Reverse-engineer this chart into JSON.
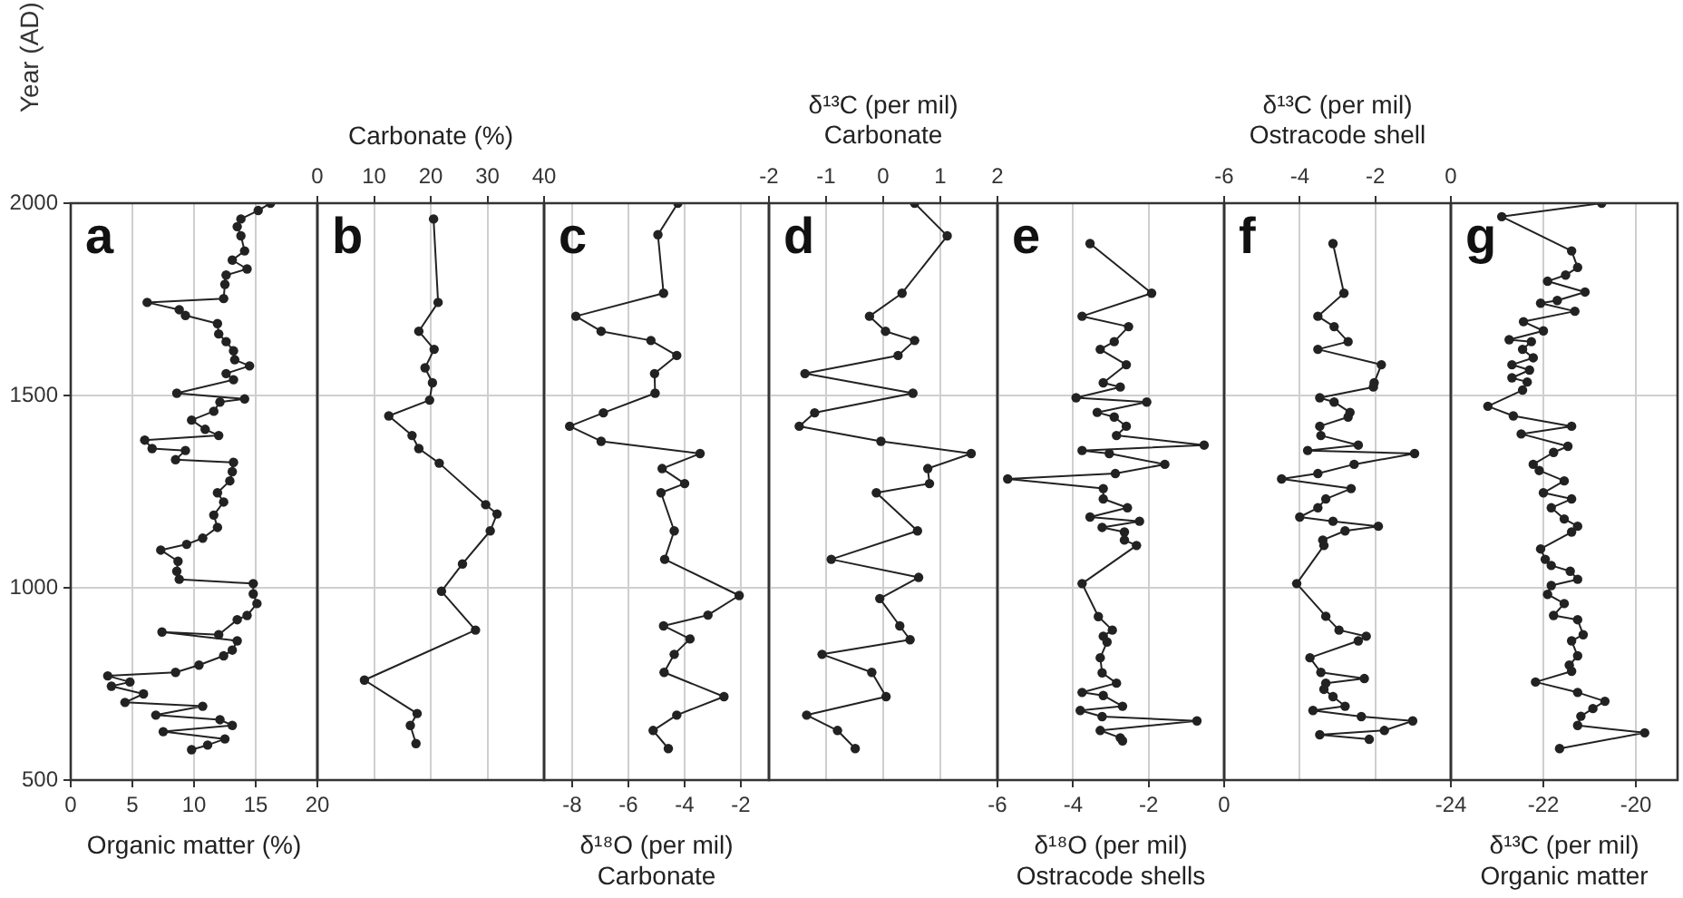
{
  "chart_data": [
    {
      "type": "line",
      "marker": "circle",
      "color": "#222222",
      "grid": true,
      "annotations": [
        "a"
      ],
      "xlabel": "Organic matter (%)",
      "ylabel": "Year (AD)",
      "xlim": [
        0,
        20
      ],
      "xticks": [
        0,
        5,
        10,
        15,
        20
      ],
      "ylim": [
        500,
        2000
      ],
      "yticks": [
        500,
        1000,
        1500,
        2000
      ],
      "x": [
        16.2,
        15.2,
        13.8,
        13.5,
        13.8,
        14.1,
        13.1,
        14.3,
        12.6,
        12.5,
        12.4,
        6.2,
        8.8,
        9.3,
        11.9,
        12.0,
        12.6,
        13.2,
        13.3,
        14.5,
        12.6,
        13.2,
        8.6,
        14.1,
        12.1,
        11.6,
        9.8,
        10.9,
        12.0,
        6.0,
        6.6,
        9.3,
        8.5,
        13.2,
        13.1,
        12.9,
        11.9,
        12.4,
        11.6,
        11.9,
        10.7,
        9.4,
        7.3,
        8.7,
        8.6,
        8.8,
        14.8,
        14.8,
        15.1,
        14.3,
        13.5,
        12.0,
        7.4,
        13.5,
        13.1,
        12.4,
        10.4,
        8.5,
        3.0,
        4.8,
        3.3,
        5.9,
        4.4,
        10.7,
        6.9,
        12.1,
        13.1,
        7.5,
        12.5,
        11.1,
        9.8
      ],
      "values": [
        2000,
        1981,
        1959,
        1939,
        1915,
        1876,
        1852,
        1829,
        1813,
        1789,
        1752,
        1742,
        1723,
        1708,
        1687,
        1660,
        1640,
        1616,
        1593,
        1577,
        1557,
        1541,
        1506,
        1491,
        1483,
        1459,
        1436,
        1412,
        1396,
        1384,
        1362,
        1357,
        1333,
        1326,
        1302,
        1278,
        1247,
        1223,
        1189,
        1157,
        1129,
        1113,
        1098,
        1069,
        1043,
        1022,
        1011,
        984,
        959,
        928,
        917,
        878,
        885,
        862,
        838,
        823,
        799,
        780,
        771,
        755,
        744,
        724,
        702,
        692,
        669,
        657,
        642,
        626,
        607,
        591,
        579
      ]
    },
    {
      "type": "line",
      "marker": "circle",
      "color": "#222222",
      "grid": true,
      "tick_labels": "x",
      "annotations": [
        "b"
      ],
      "xlabel": "Carbonate (%)",
      "xlim": [
        0,
        40
      ],
      "xticks": [
        0,
        10,
        20,
        30,
        40
      ],
      "ylim": [
        500,
        2000
      ],
      "yticks": [
        500,
        1000,
        1500,
        2000
      ],
      "x": [
        20.5,
        21.3,
        17.9,
        20.6,
        19.0,
        20.3,
        19.8,
        12.6,
        16.7,
        17.9,
        21.5,
        29.7,
        31.7,
        30.5,
        25.6,
        21.9,
        27.9,
        8.3,
        17.6,
        16.4,
        17.4
      ],
      "values": [
        1959,
        1742,
        1667,
        1620,
        1572,
        1533,
        1488,
        1447,
        1396,
        1362,
        1324,
        1216,
        1192,
        1148,
        1062,
        991,
        890,
        760,
        673,
        642,
        595
      ]
    },
    {
      "type": "line",
      "marker": "circle",
      "color": "#222222",
      "grid": true,
      "tick_labels": "x",
      "annotations": [
        "c"
      ],
      "xlabel": "δ¹⁸O (per mil)\nCarbonate",
      "xlim": [
        -9,
        -1
      ],
      "xticks": [
        -8,
        -6,
        -4,
        -2
      ],
      "ylim": [
        500,
        2000
      ],
      "yticks": [
        500,
        1000,
        1500,
        2000
      ],
      "x": [
        -4.24,
        -4.95,
        -4.75,
        -7.87,
        -6.97,
        -5.2,
        -4.28,
        -5.07,
        -5.05,
        -6.89,
        -8.09,
        -6.97,
        -3.45,
        -4.8,
        -4.0,
        -4.84,
        -4.37,
        -4.71,
        -2.06,
        -3.17,
        -4.75,
        -3.81,
        -4.37,
        -4.73,
        -2.6,
        -4.28,
        -5.12,
        -4.58
      ],
      "values": [
        2000,
        1918,
        1766,
        1706,
        1667,
        1643,
        1604,
        1557,
        1506,
        1455,
        1420,
        1381,
        1349,
        1310,
        1271,
        1247,
        1148,
        1074,
        980,
        929,
        901,
        867,
        827,
        780,
        717,
        669,
        629,
        582
      ]
    },
    {
      "type": "line",
      "marker": "circle",
      "color": "#222222",
      "grid": true,
      "tick_labels": "x",
      "annotations": [
        "d"
      ],
      "xlabel": "δ¹³C (per mil)\nCarbonate",
      "xlim": [
        -2,
        2
      ],
      "xticks": [
        -2,
        -1,
        0,
        1,
        2
      ],
      "ylim": [
        500,
        2000
      ],
      "yticks": [
        500,
        1000,
        1500,
        2000
      ],
      "x": [
        0.55,
        1.12,
        0.33,
        -0.24,
        0.04,
        0.55,
        0.26,
        -1.37,
        0.52,
        -1.2,
        -1.47,
        -0.04,
        1.54,
        0.78,
        0.81,
        -0.12,
        0.6,
        -0.91,
        0.62,
        -0.06,
        0.29,
        0.47,
        -1.07,
        -0.2,
        0.05,
        -1.34,
        -0.8,
        -0.49
      ],
      "values": [
        2000,
        1915,
        1766,
        1706,
        1667,
        1643,
        1604,
        1557,
        1506,
        1455,
        1420,
        1381,
        1349,
        1310,
        1271,
        1247,
        1148,
        1074,
        1027,
        972,
        901,
        865,
        827,
        780,
        717,
        669,
        629,
        582
      ]
    },
    {
      "type": "line",
      "marker": "circle",
      "color": "#222222",
      "grid": true,
      "tick_labels": "x",
      "annotations": [
        "e"
      ],
      "xlabel": "δ¹⁸O (per mil)\nOstracode shells",
      "xlim": [
        -6,
        0
      ],
      "xticks": [
        -6,
        -4,
        -2,
        0
      ],
      "ylim": [
        500,
        2000
      ],
      "yticks": [
        500,
        1000,
        1500,
        2000
      ],
      "x": [
        -3.55,
        -1.92,
        -3.76,
        -2.53,
        -2.91,
        -3.28,
        -2.59,
        -3.2,
        -2.75,
        -3.92,
        -2.05,
        -3.36,
        -2.91,
        -2.59,
        -2.85,
        -0.53,
        -3.76,
        -3.04,
        -1.57,
        -2.88,
        -5.73,
        -3.2,
        -3.2,
        -2.56,
        -3.55,
        -2.24,
        -3.23,
        -2.64,
        -2.64,
        -2.32,
        -3.76,
        -3.33,
        -2.96,
        -3.2,
        -3.1,
        -3.28,
        -3.23,
        -2.85,
        -3.76,
        -3.2,
        -2.69,
        -3.81,
        -3.23,
        -0.72,
        -3.28,
        -2.75,
        -2.69
      ],
      "values": [
        1895,
        1766,
        1706,
        1679,
        1640,
        1620,
        1580,
        1533,
        1522,
        1494,
        1483,
        1456,
        1444,
        1420,
        1396,
        1371,
        1357,
        1349,
        1321,
        1297,
        1283,
        1258,
        1231,
        1208,
        1184,
        1173,
        1157,
        1145,
        1124,
        1110,
        1011,
        925,
        890,
        874,
        859,
        818,
        779,
        752,
        728,
        720,
        692,
        681,
        665,
        654,
        629,
        610,
        602
      ]
    },
    {
      "type": "line",
      "marker": "circle",
      "color": "#222222",
      "grid": true,
      "tick_labels": "x",
      "annotations": [
        "f"
      ],
      "xlabel": "δ¹³C (per mil)\nOstracode shell",
      "xlim": [
        -6,
        0
      ],
      "xticks": [
        -6,
        -4,
        -2,
        0
      ],
      "ylim": [
        500,
        2000
      ],
      "yticks": [
        500,
        1000,
        1500,
        2000
      ],
      "x": [
        -3.12,
        -2.83,
        -3.52,
        -3.09,
        -2.72,
        -3.52,
        -1.84,
        -2.03,
        -2.05,
        -3.47,
        -3.09,
        -2.67,
        -2.72,
        -3.47,
        -3.44,
        -2.45,
        -3.79,
        -0.96,
        -2.56,
        -3.52,
        -4.48,
        -2.64,
        -3.31,
        -3.52,
        -4.0,
        -3.12,
        -1.92,
        -2.8,
        -3.39,
        -3.36,
        -4.08,
        -3.31,
        -2.96,
        -2.24,
        -2.45,
        -3.73,
        -3.44,
        -2.29,
        -3.31,
        -3.36,
        -3.12,
        -2.8,
        -3.65,
        -2.37,
        -1.01,
        -1.76,
        -3.47,
        -2.16
      ],
      "values": [
        1895,
        1766,
        1706,
        1679,
        1640,
        1620,
        1580,
        1533,
        1522,
        1494,
        1483,
        1456,
        1444,
        1420,
        1396,
        1371,
        1357,
        1349,
        1321,
        1297,
        1283,
        1258,
        1231,
        1208,
        1184,
        1173,
        1160,
        1148,
        1124,
        1110,
        1011,
        926,
        890,
        874,
        862,
        818,
        780,
        764,
        752,
        736,
        717,
        692,
        681,
        665,
        654,
        629,
        618,
        606
      ]
    },
    {
      "type": "line",
      "marker": "circle",
      "color": "#222222",
      "grid": true,
      "tick_labels": "x",
      "annotations": [
        "g"
      ],
      "xlabel": "δ¹³C (per mil)\nOrganic matter",
      "xlim": [
        -24,
        -19.1
      ],
      "xticks": [
        -24,
        -22,
        -20
      ],
      "ylim": [
        500,
        2000
      ],
      "yticks": [
        500,
        1000,
        1500,
        2000
      ],
      "x": [
        -20.74,
        -22.9,
        -21.39,
        -21.26,
        -21.52,
        -21.91,
        -21.1,
        -21.7,
        -22.06,
        -21.32,
        -22.43,
        -22.0,
        -22.74,
        -22.26,
        -22.45,
        -22.22,
        -22.68,
        -22.3,
        -22.68,
        -22.35,
        -22.45,
        -23.2,
        -22.65,
        -21.39,
        -22.48,
        -21.47,
        -21.78,
        -22.22,
        -22.09,
        -21.55,
        -22.0,
        -21.39,
        -21.83,
        -21.55,
        -21.26,
        -21.39,
        -22.06,
        -21.96,
        -21.83,
        -21.42,
        -21.26,
        -21.83,
        -21.91,
        -21.55,
        -21.78,
        -21.26,
        -21.14,
        -21.39,
        -21.26,
        -21.44,
        -21.39,
        -22.17,
        -21.26,
        -20.67,
        -20.93,
        -21.19,
        -21.26,
        -19.81,
        -21.65
      ],
      "values": [
        2000,
        1965,
        1876,
        1833,
        1813,
        1797,
        1769,
        1747,
        1740,
        1719,
        1692,
        1668,
        1645,
        1640,
        1620,
        1598,
        1580,
        1566,
        1546,
        1535,
        1514,
        1472,
        1447,
        1420,
        1400,
        1368,
        1352,
        1321,
        1305,
        1278,
        1247,
        1231,
        1208,
        1179,
        1160,
        1145,
        1101,
        1074,
        1058,
        1043,
        1022,
        1006,
        983,
        959,
        928,
        917,
        878,
        862,
        823,
        799,
        783,
        755,
        728,
        705,
        686,
        666,
        642,
        623,
        582
      ]
    }
  ]
}
